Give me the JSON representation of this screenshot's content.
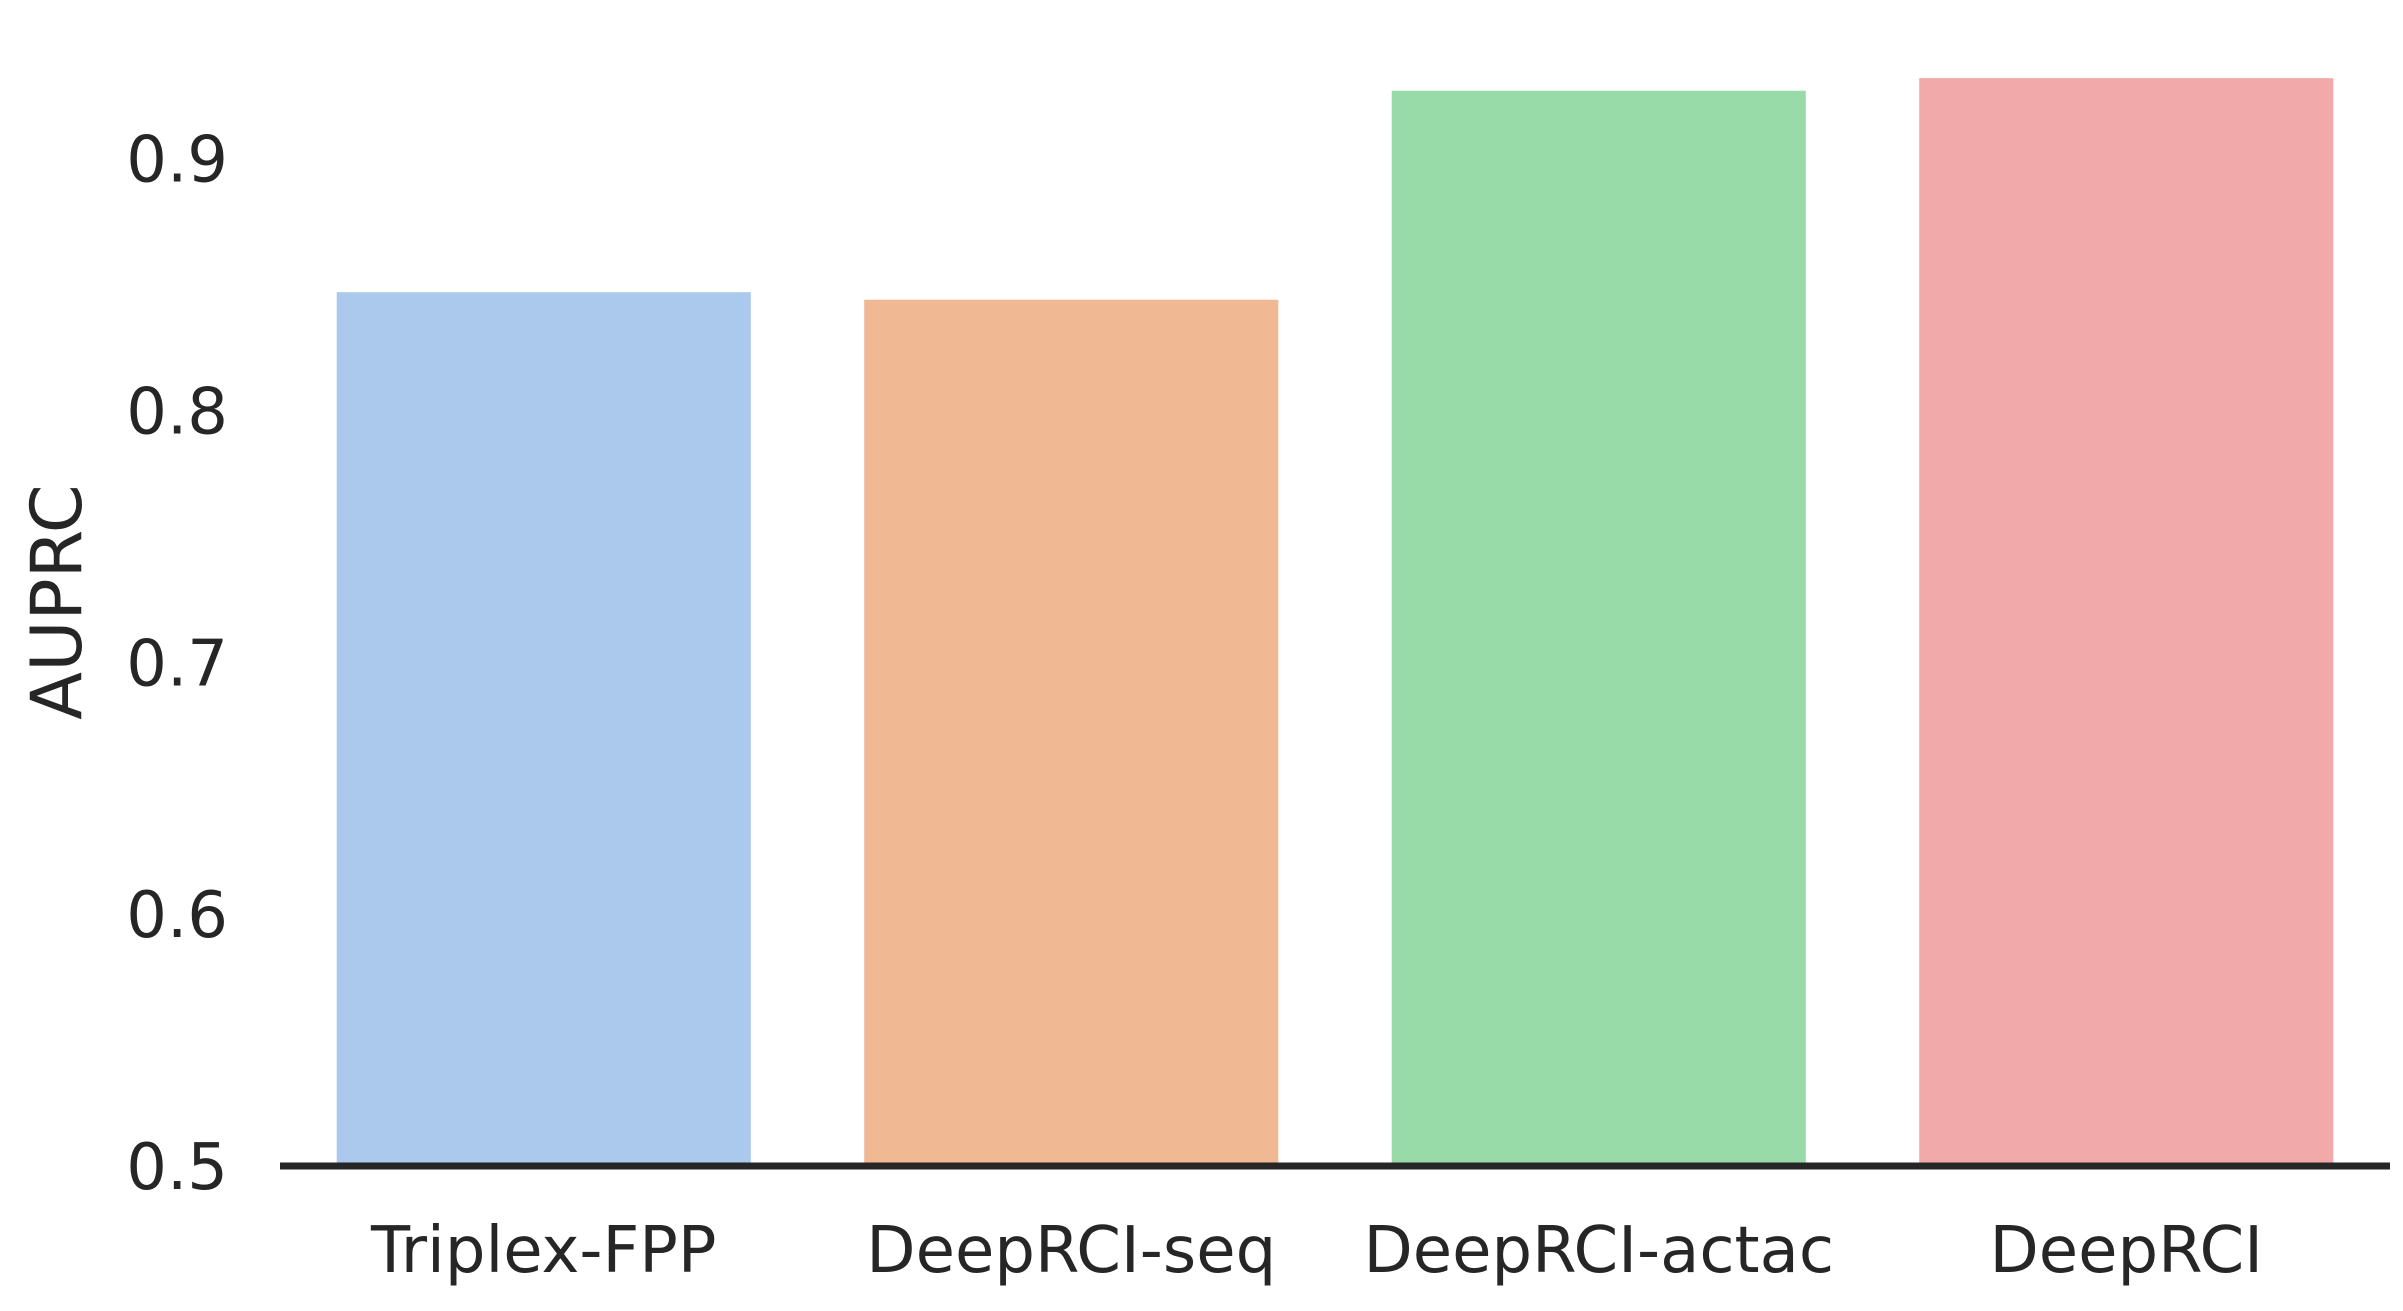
{
  "chart_data": {
    "type": "bar",
    "categories": [
      "Triplex-FPP",
      "DeepRCI-seq",
      "DeepRCI-actac",
      "DeepRCI"
    ],
    "values": [
      0.847,
      0.844,
      0.927,
      0.932
    ],
    "colors": [
      "#abc9ed",
      "#f0b893",
      "#99dba8",
      "#f2a9a9"
    ],
    "title": "",
    "xlabel": "",
    "ylabel": "AUPRC",
    "ylim": [
      0.5,
      0.94
    ],
    "yticks": [
      "0.5",
      "0.6",
      "0.7",
      "0.8",
      "0.9"
    ],
    "grid": false,
    "legend": "none"
  }
}
